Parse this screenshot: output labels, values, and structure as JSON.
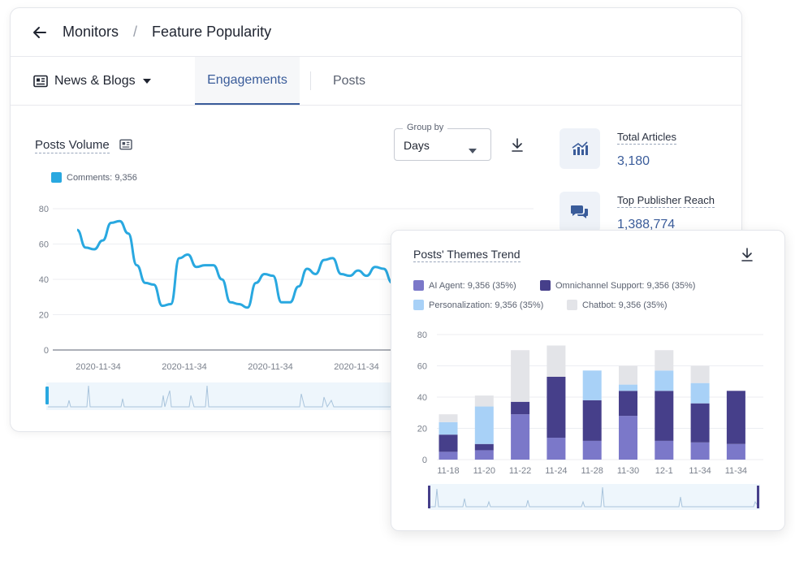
{
  "header": {
    "breadcrumb_root": "Monitors",
    "separator": "/",
    "page_title": "Feature Popularity"
  },
  "source_selector": {
    "label": "News & Blogs"
  },
  "tabs": [
    {
      "label": "Engagements",
      "active": true
    },
    {
      "label": "Posts",
      "active": false
    }
  ],
  "posts_volume": {
    "title": "Posts Volume",
    "group_by": {
      "label": "Group by",
      "value": "Days"
    },
    "legend": {
      "name": "Comments:",
      "value": "9,356",
      "color": "#29a8e0"
    }
  },
  "stats": [
    {
      "label": "Total Articles",
      "value": "3,180",
      "icon": "bar-chart-icon"
    },
    {
      "label": "Top Publisher Reach",
      "value": "1,388,774",
      "icon": "chat-bubbles-icon"
    }
  ],
  "themes_trend": {
    "title": "Posts' Themes Trend",
    "legend": [
      {
        "name": "AI Agent:",
        "value": "9,356 (35%)",
        "color": "#7b78c9"
      },
      {
        "name": "Omnichannel Support:",
        "value": "9,356 (35%)",
        "color": "#463f8a"
      },
      {
        "name": "Personalization:",
        "value": "9,356 (35%)",
        "color": "#a8d1f7"
      },
      {
        "name": "Chatbot:",
        "value": "9,356 (35%)",
        "color": "#e3e4e8"
      }
    ]
  },
  "chart_data": [
    {
      "type": "line",
      "series": [
        {
          "name": "Comments",
          "color": "#29a8e0",
          "values": [
            68,
            58,
            57,
            62,
            72,
            73,
            66,
            48,
            38,
            37,
            25,
            26,
            52,
            54,
            47,
            48,
            48,
            40,
            27,
            26,
            24,
            38,
            43,
            42,
            27,
            27,
            36,
            46,
            43,
            51,
            52,
            43,
            42,
            45,
            42,
            47,
            46,
            38
          ]
        }
      ],
      "x_tick_labels": [
        "2020-11-34",
        "2020-11-34",
        "2020-11-34",
        "2020-11-34"
      ],
      "ylim": [
        0,
        80
      ],
      "y_ticks": [
        0,
        20,
        40,
        60,
        80
      ],
      "grid": true
    },
    {
      "type": "bar",
      "stacked": true,
      "categories": [
        "11-18",
        "11-20",
        "11-22",
        "11-24",
        "11-28",
        "11-30",
        "12-1",
        "11-34",
        "11-34"
      ],
      "series": [
        {
          "name": "AI Agent",
          "color": "#7b78c9",
          "values": [
            5,
            6,
            29,
            14,
            12,
            28,
            12,
            11,
            10
          ]
        },
        {
          "name": "Omnichannel Support",
          "color": "#463f8a",
          "values": [
            11,
            4,
            8,
            39,
            26,
            16,
            32,
            25,
            34
          ]
        },
        {
          "name": "Personalization",
          "color": "#a8d1f7",
          "values": [
            8,
            24,
            0,
            0,
            19,
            4,
            13,
            13,
            0
          ]
        },
        {
          "name": "Chatbot",
          "color": "#e3e4e8",
          "values": [
            5,
            7,
            33,
            20,
            0,
            12,
            13,
            11,
            0
          ]
        }
      ],
      "ylim": [
        0,
        80
      ],
      "y_ticks": [
        0,
        20,
        40,
        60,
        80
      ],
      "grid": true
    }
  ]
}
